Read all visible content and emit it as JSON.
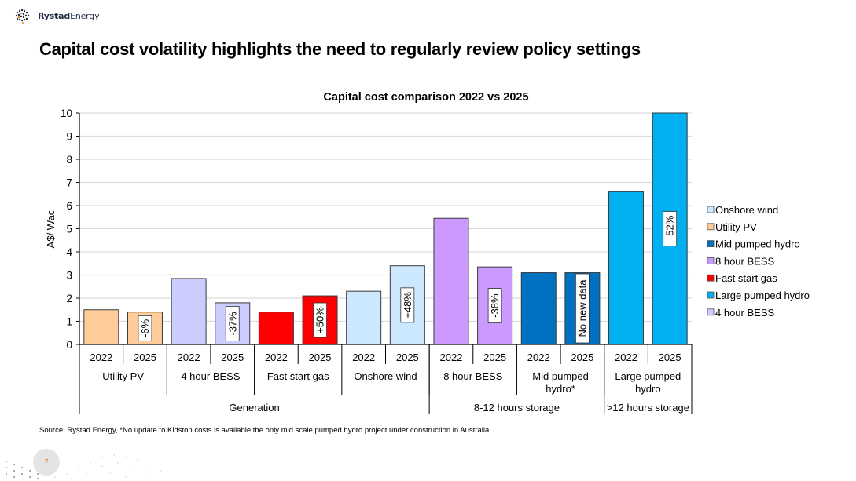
{
  "brand": {
    "name_bold": "Rystad",
    "name_regular": "Energy"
  },
  "slide": {
    "title": "Capital cost volatility highlights the need to regularly review policy settings",
    "source": "Source: Rystad Energy, *No update to Kidston costs is available the only mid scale pumped hydro project under construction in  Australia",
    "page_number": "7"
  },
  "chart_data": {
    "type": "bar",
    "title": "Capital cost comparison 2022 vs 2025",
    "xlabel": "",
    "ylabel": "A$/ Wac",
    "ylim": [
      0,
      10
    ],
    "yticks": [
      0,
      1,
      2,
      3,
      4,
      5,
      6,
      7,
      8,
      9,
      10
    ],
    "grid": true,
    "legend_position": "right",
    "categories": [
      "2022",
      "2025",
      "2022",
      "2025",
      "2022",
      "2025",
      "2022",
      "2025",
      "2022",
      "2025",
      "2022",
      "2025",
      "2022",
      "2025"
    ],
    "bars": [
      {
        "technology": "Utility PV",
        "year": "2022",
        "value": 1.5,
        "color": "#FFCC99",
        "label": ""
      },
      {
        "technology": "Utility PV",
        "year": "2025",
        "value": 1.4,
        "color": "#FFCC99",
        "label": "-6%"
      },
      {
        "technology": "4 hour BESS",
        "year": "2022",
        "value": 2.85,
        "color": "#CCCCFF",
        "label": ""
      },
      {
        "technology": "4 hour BESS",
        "year": "2025",
        "value": 1.8,
        "color": "#CCCCFF",
        "label": "-37%"
      },
      {
        "technology": "Fast start gas",
        "year": "2022",
        "value": 1.4,
        "color": "#FF0000",
        "label": ""
      },
      {
        "technology": "Fast start gas",
        "year": "2025",
        "value": 2.1,
        "color": "#FF0000",
        "label": "+50%"
      },
      {
        "technology": "Onshore wind",
        "year": "2022",
        "value": 2.3,
        "color": "#CCE8FF",
        "label": ""
      },
      {
        "technology": "Onshore wind",
        "year": "2025",
        "value": 3.4,
        "color": "#CCE8FF",
        "label": "+48%"
      },
      {
        "technology": "8 hour BESS",
        "year": "2022",
        "value": 5.45,
        "color": "#CC99FF",
        "label": ""
      },
      {
        "technology": "8 hour BESS",
        "year": "2025",
        "value": 3.35,
        "color": "#CC99FF",
        "label": "-38%"
      },
      {
        "technology": "Mid pumped hydro",
        "year": "2022",
        "value": 3.1,
        "color": "#0070C0",
        "label": ""
      },
      {
        "technology": "Mid pumped hydro",
        "year": "2025",
        "value": 3.1,
        "color": "#0070C0",
        "label": "No new data"
      },
      {
        "technology": "Large pumped hydro",
        "year": "2022",
        "value": 6.6,
        "color": "#00B0F0",
        "label": ""
      },
      {
        "technology": "Large pumped hydro",
        "year": "2025",
        "value": 10.0,
        "color": "#00B0F0",
        "label": "+52%"
      }
    ],
    "technology_groups": [
      {
        "label_lines": [
          "Utility PV"
        ],
        "span": 2
      },
      {
        "label_lines": [
          "4 hour BESS"
        ],
        "span": 2
      },
      {
        "label_lines": [
          "Fast start gas"
        ],
        "span": 2
      },
      {
        "label_lines": [
          "Onshore wind"
        ],
        "span": 2
      },
      {
        "label_lines": [
          "8 hour BESS"
        ],
        "span": 2
      },
      {
        "label_lines": [
          "Mid pumped",
          "hydro*"
        ],
        "span": 2
      },
      {
        "label_lines": [
          "Large pumped",
          "hydro"
        ],
        "span": 2
      }
    ],
    "duration_groups": [
      {
        "label": "Generation",
        "span": 8
      },
      {
        "label": "8-12 hours storage",
        "span": 4
      },
      {
        "label": ">12 hours storage",
        "span": 2
      }
    ],
    "legend": [
      {
        "name": "Onshore wind",
        "color": "#CCE8FF"
      },
      {
        "name": "Utility PV",
        "color": "#FFCC99"
      },
      {
        "name": "Mid pumped hydro",
        "color": "#0070C0"
      },
      {
        "name": "8 hour BESS",
        "color": "#CC99FF"
      },
      {
        "name": "Fast start gas",
        "color": "#FF0000"
      },
      {
        "name": "Large pumped hydro",
        "color": "#00B0F0"
      },
      {
        "name": "4 hour BESS",
        "color": "#CCCCFF"
      }
    ]
  }
}
